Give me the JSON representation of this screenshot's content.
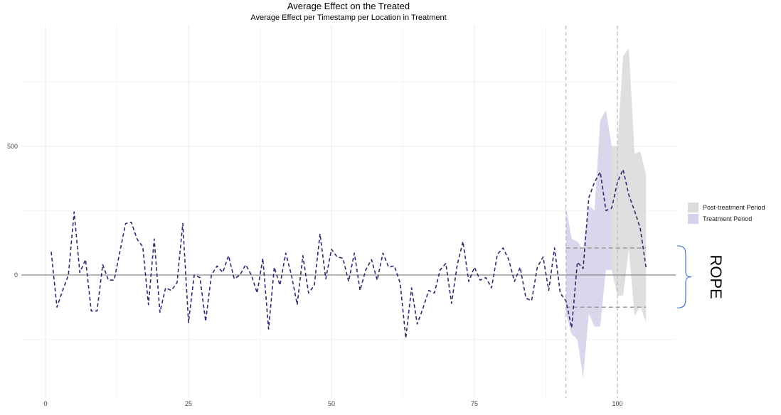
{
  "chart_data": {
    "type": "line",
    "title": "Average Effect on the Treated",
    "subtitle": "Average Effect per Timestamp per Location in Treatment",
    "xlabel": "",
    "ylabel": "",
    "xlim": [
      0,
      110
    ],
    "ylim": [
      -450,
      830
    ],
    "x_ticks": [
      0,
      25,
      50,
      75,
      100
    ],
    "x_tick_labels": [
      "0",
      "25",
      "50",
      "75",
      "100"
    ],
    "y_ticks": [
      0,
      500
    ],
    "y_tick_labels": [
      "0",
      "500"
    ],
    "y_minor_gridlines": [
      -250,
      250,
      750
    ],
    "grid": true,
    "zero_line": 0,
    "treatment_start": 91,
    "post_treatment_start": 100,
    "series": [
      {
        "style": "dashed",
        "color": "#2f2a6b",
        "x": [
          1,
          2,
          3,
          4,
          5,
          6,
          7,
          8,
          9,
          10,
          11,
          12,
          13,
          14,
          15,
          16,
          17,
          18,
          19,
          20,
          21,
          22,
          23,
          24,
          25,
          26,
          27,
          28,
          29,
          30,
          31,
          32,
          33,
          34,
          35,
          36,
          37,
          38,
          39,
          40,
          41,
          42,
          43,
          44,
          45,
          46,
          47,
          48,
          49,
          50,
          51,
          52,
          53,
          54,
          55,
          56,
          57,
          58,
          59,
          60,
          61,
          62,
          63,
          64,
          65,
          66,
          67,
          68,
          69,
          70,
          71,
          72,
          73,
          74,
          75,
          76,
          77,
          78,
          79,
          80,
          81,
          82,
          83,
          84,
          85,
          86,
          87,
          88,
          89,
          90,
          91,
          92,
          93,
          94,
          95,
          96,
          97,
          98,
          99,
          100,
          101,
          102,
          103,
          104,
          105
        ],
        "y": [
          90,
          -125,
          -60,
          0,
          245,
          10,
          60,
          -140,
          -140,
          40,
          -20,
          -20,
          90,
          200,
          205,
          140,
          110,
          -115,
          140,
          -145,
          -50,
          -60,
          -30,
          200,
          -185,
          0,
          -10,
          -180,
          0,
          35,
          10,
          75,
          -15,
          0,
          40,
          0,
          -70,
          65,
          -210,
          30,
          -40,
          85,
          0,
          -115,
          75,
          -70,
          -40,
          160,
          -15,
          100,
          70,
          65,
          -25,
          85,
          -60,
          20,
          60,
          -20,
          85,
          30,
          35,
          -30,
          -245,
          -50,
          -190,
          -130,
          -60,
          -70,
          20,
          45,
          -110,
          40,
          130,
          -25,
          30,
          -20,
          -10,
          -50,
          80,
          105,
          60,
          -25,
          30,
          -90,
          -100,
          30,
          70,
          -60,
          105,
          -70,
          -100,
          -205,
          50,
          25,
          300,
          360,
          400,
          250,
          260,
          360,
          410,
          310,
          250,
          180,
          30
        ]
      }
    ],
    "bands": [
      {
        "name": "Treatment Period",
        "color": "#d5d3ea",
        "x": [
          91,
          92,
          93,
          94,
          95,
          96,
          97,
          98,
          99
        ],
        "upper": [
          270,
          140,
          130,
          100,
          270,
          250,
          600,
          640,
          500
        ],
        "lower": [
          -150,
          -230,
          -250,
          -400,
          -150,
          -200,
          -200,
          20,
          20
        ]
      },
      {
        "name": "Post-treatment Period",
        "color": "#dcdcdc",
        "x": [
          99,
          100,
          101,
          102,
          103,
          104,
          105
        ],
        "upper": [
          500,
          500,
          850,
          880,
          470,
          480,
          390
        ],
        "lower": [
          20,
          -80,
          -80,
          100,
          -160,
          -120,
          -185
        ]
      }
    ],
    "rope": {
      "label": "ROPE",
      "upper": 105,
      "lower": -125,
      "x_range": [
        91,
        105
      ]
    },
    "legend": {
      "placement": "right",
      "entries": [
        {
          "label": "Post-treatment Period",
          "color": "#dcdcdc"
        },
        {
          "label": "Treatment Period",
          "color": "#d5d3ea"
        }
      ]
    }
  }
}
